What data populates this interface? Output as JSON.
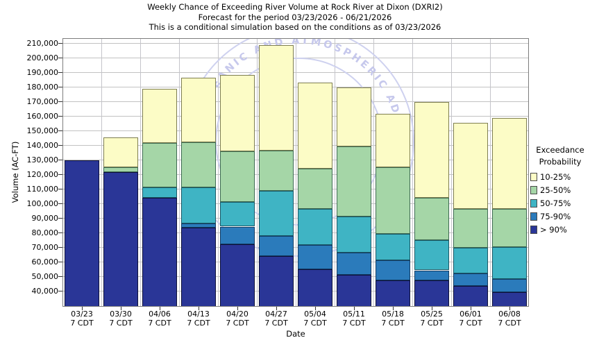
{
  "title": {
    "line1": "Weekly Chance of Exceeding River Volume at Rock River at Dixon (DXRI2)",
    "line2": "Forecast for the period 03/23/2026 - 06/21/2026",
    "line3": "This is a conditional simulation based on the conditions as of 03/23/2026"
  },
  "watermark": {
    "arc_text_top": "NATIONAL OCEANIC AND ATMOSPHERIC ADMINISTRATION",
    "text_color": "#c6c8ec",
    "ring_color": "#ced1ef"
  },
  "legend": {
    "title_line1": "Exceedance",
    "title_line2": "Probability",
    "items": [
      {
        "label": "10-25%",
        "color": "#fcfcc6",
        "border": "#7e7e50"
      },
      {
        "label": "25-50%",
        "color": "#a5d6a7",
        "border": "#3e6b52"
      },
      {
        "label": "50-75%",
        "color": "#3fb4c4",
        "border": "#1a5866"
      },
      {
        "label": "75-90%",
        "color": "#2b7bbb",
        "border": "#123b63"
      },
      {
        "label": "> 90%",
        "color": "#2a3697",
        "border": "#0d1038"
      }
    ]
  },
  "chart_data": {
    "type": "bar",
    "stacked": true,
    "title": "Weekly Chance of Exceeding River Volume at Rock River at Dixon (DXRI2)",
    "xlabel": "Date",
    "ylabel": "Volume (AC-FT)",
    "ylim": [
      29500,
      213800
    ],
    "ytick_min": 40000,
    "ytick_max": 210000,
    "ytick_step": 10000,
    "grid": true,
    "legend_position": "right",
    "x_sub_label": "7 CDT",
    "series_order_bottom_to_top": [
      "> 90%",
      "75-90%",
      "50-75%",
      "25-50%",
      "10-25%"
    ],
    "categories": [
      "03/23",
      "03/30",
      "04/06",
      "04/13",
      "04/20",
      "04/27",
      "05/04",
      "05/11",
      "05/18",
      "05/25",
      "06/01",
      "06/08"
    ],
    "bars": [
      {
        "date": "03/23",
        "cumulative_tops": {
          "> 90%": 130000,
          "75-90%": 130000,
          "50-75%": 130000,
          "25-50%": 130000,
          "10-25%": 130000
        }
      },
      {
        "date": "03/30",
        "cumulative_tops": {
          "> 90%": 122000,
          "75-90%": 122000,
          "50-75%": 122000,
          "25-50%": 125000,
          "10-25%": 145500
        }
      },
      {
        "date": "04/06",
        "cumulative_tops": {
          "> 90%": 104500,
          "75-90%": 104500,
          "50-75%": 111500,
          "25-50%": 142000,
          "10-25%": 179000
        }
      },
      {
        "date": "04/13",
        "cumulative_tops": {
          "> 90%": 84000,
          "75-90%": 86500,
          "50-75%": 111500,
          "25-50%": 142500,
          "10-25%": 186500
        }
      },
      {
        "date": "04/20",
        "cumulative_tops": {
          "> 90%": 72500,
          "75-90%": 84500,
          "50-75%": 101500,
          "25-50%": 136000,
          "10-25%": 188500
        }
      },
      {
        "date": "04/27",
        "cumulative_tops": {
          "> 90%": 64500,
          "75-90%": 78000,
          "50-75%": 109000,
          "25-50%": 136500,
          "10-25%": 209000
        }
      },
      {
        "date": "05/04",
        "cumulative_tops": {
          "> 90%": 55000,
          "75-90%": 72000,
          "50-75%": 96500,
          "25-50%": 124500,
          "10-25%": 183500
        }
      },
      {
        "date": "05/11",
        "cumulative_tops": {
          "> 90%": 51500,
          "75-90%": 66500,
          "50-75%": 91500,
          "25-50%": 139500,
          "10-25%": 180000
        }
      },
      {
        "date": "05/18",
        "cumulative_tops": {
          "> 90%": 47500,
          "75-90%": 61500,
          "50-75%": 79500,
          "25-50%": 125000,
          "10-25%": 162000
        }
      },
      {
        "date": "05/25",
        "cumulative_tops": {
          "> 90%": 47500,
          "75-90%": 54500,
          "50-75%": 75000,
          "25-50%": 104500,
          "10-25%": 170000
        }
      },
      {
        "date": "06/01",
        "cumulative_tops": {
          "> 90%": 44000,
          "75-90%": 52500,
          "50-75%": 70000,
          "25-50%": 96500,
          "10-25%": 155500
        }
      },
      {
        "date": "06/08",
        "cumulative_tops": {
          "> 90%": 39500,
          "75-90%": 48500,
          "50-75%": 70500,
          "25-50%": 96500,
          "10-25%": 159000
        }
      }
    ]
  }
}
